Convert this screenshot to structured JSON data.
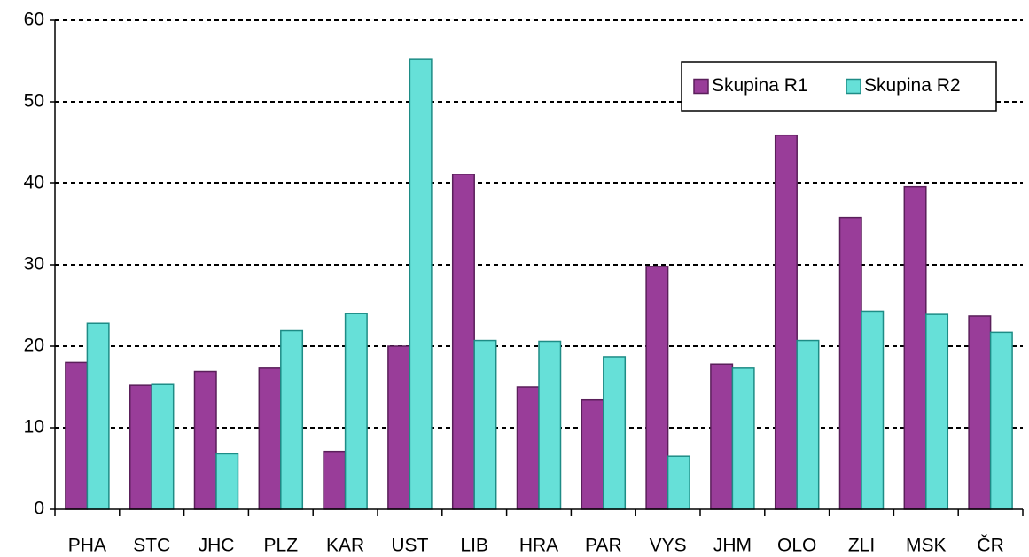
{
  "chart_data": {
    "type": "bar",
    "categories": [
      "PHA",
      "STC",
      "JHC",
      "PLZ",
      "KAR",
      "UST",
      "LIB",
      "HRA",
      "PAR",
      "VYS",
      "JHM",
      "OLO",
      "ZLI",
      "MSK",
      "ČR"
    ],
    "series": [
      {
        "name": "Skupina R1",
        "color": "#993d99",
        "values": [
          18.0,
          15.2,
          16.9,
          17.3,
          7.1,
          20.0,
          41.1,
          15.0,
          13.4,
          29.8,
          17.8,
          45.9,
          35.8,
          39.6,
          23.7
        ]
      },
      {
        "name": "Skupina R2",
        "color": "#66e0d8",
        "values": [
          22.8,
          15.3,
          6.8,
          21.9,
          24.0,
          55.2,
          20.7,
          20.6,
          18.7,
          6.5,
          17.3,
          20.7,
          24.3,
          23.9,
          21.7
        ]
      }
    ],
    "ylim": [
      0,
      60
    ],
    "yticks": [
      0,
      10,
      20,
      30,
      40,
      50,
      60
    ],
    "grid": true,
    "legend": "top-right"
  }
}
